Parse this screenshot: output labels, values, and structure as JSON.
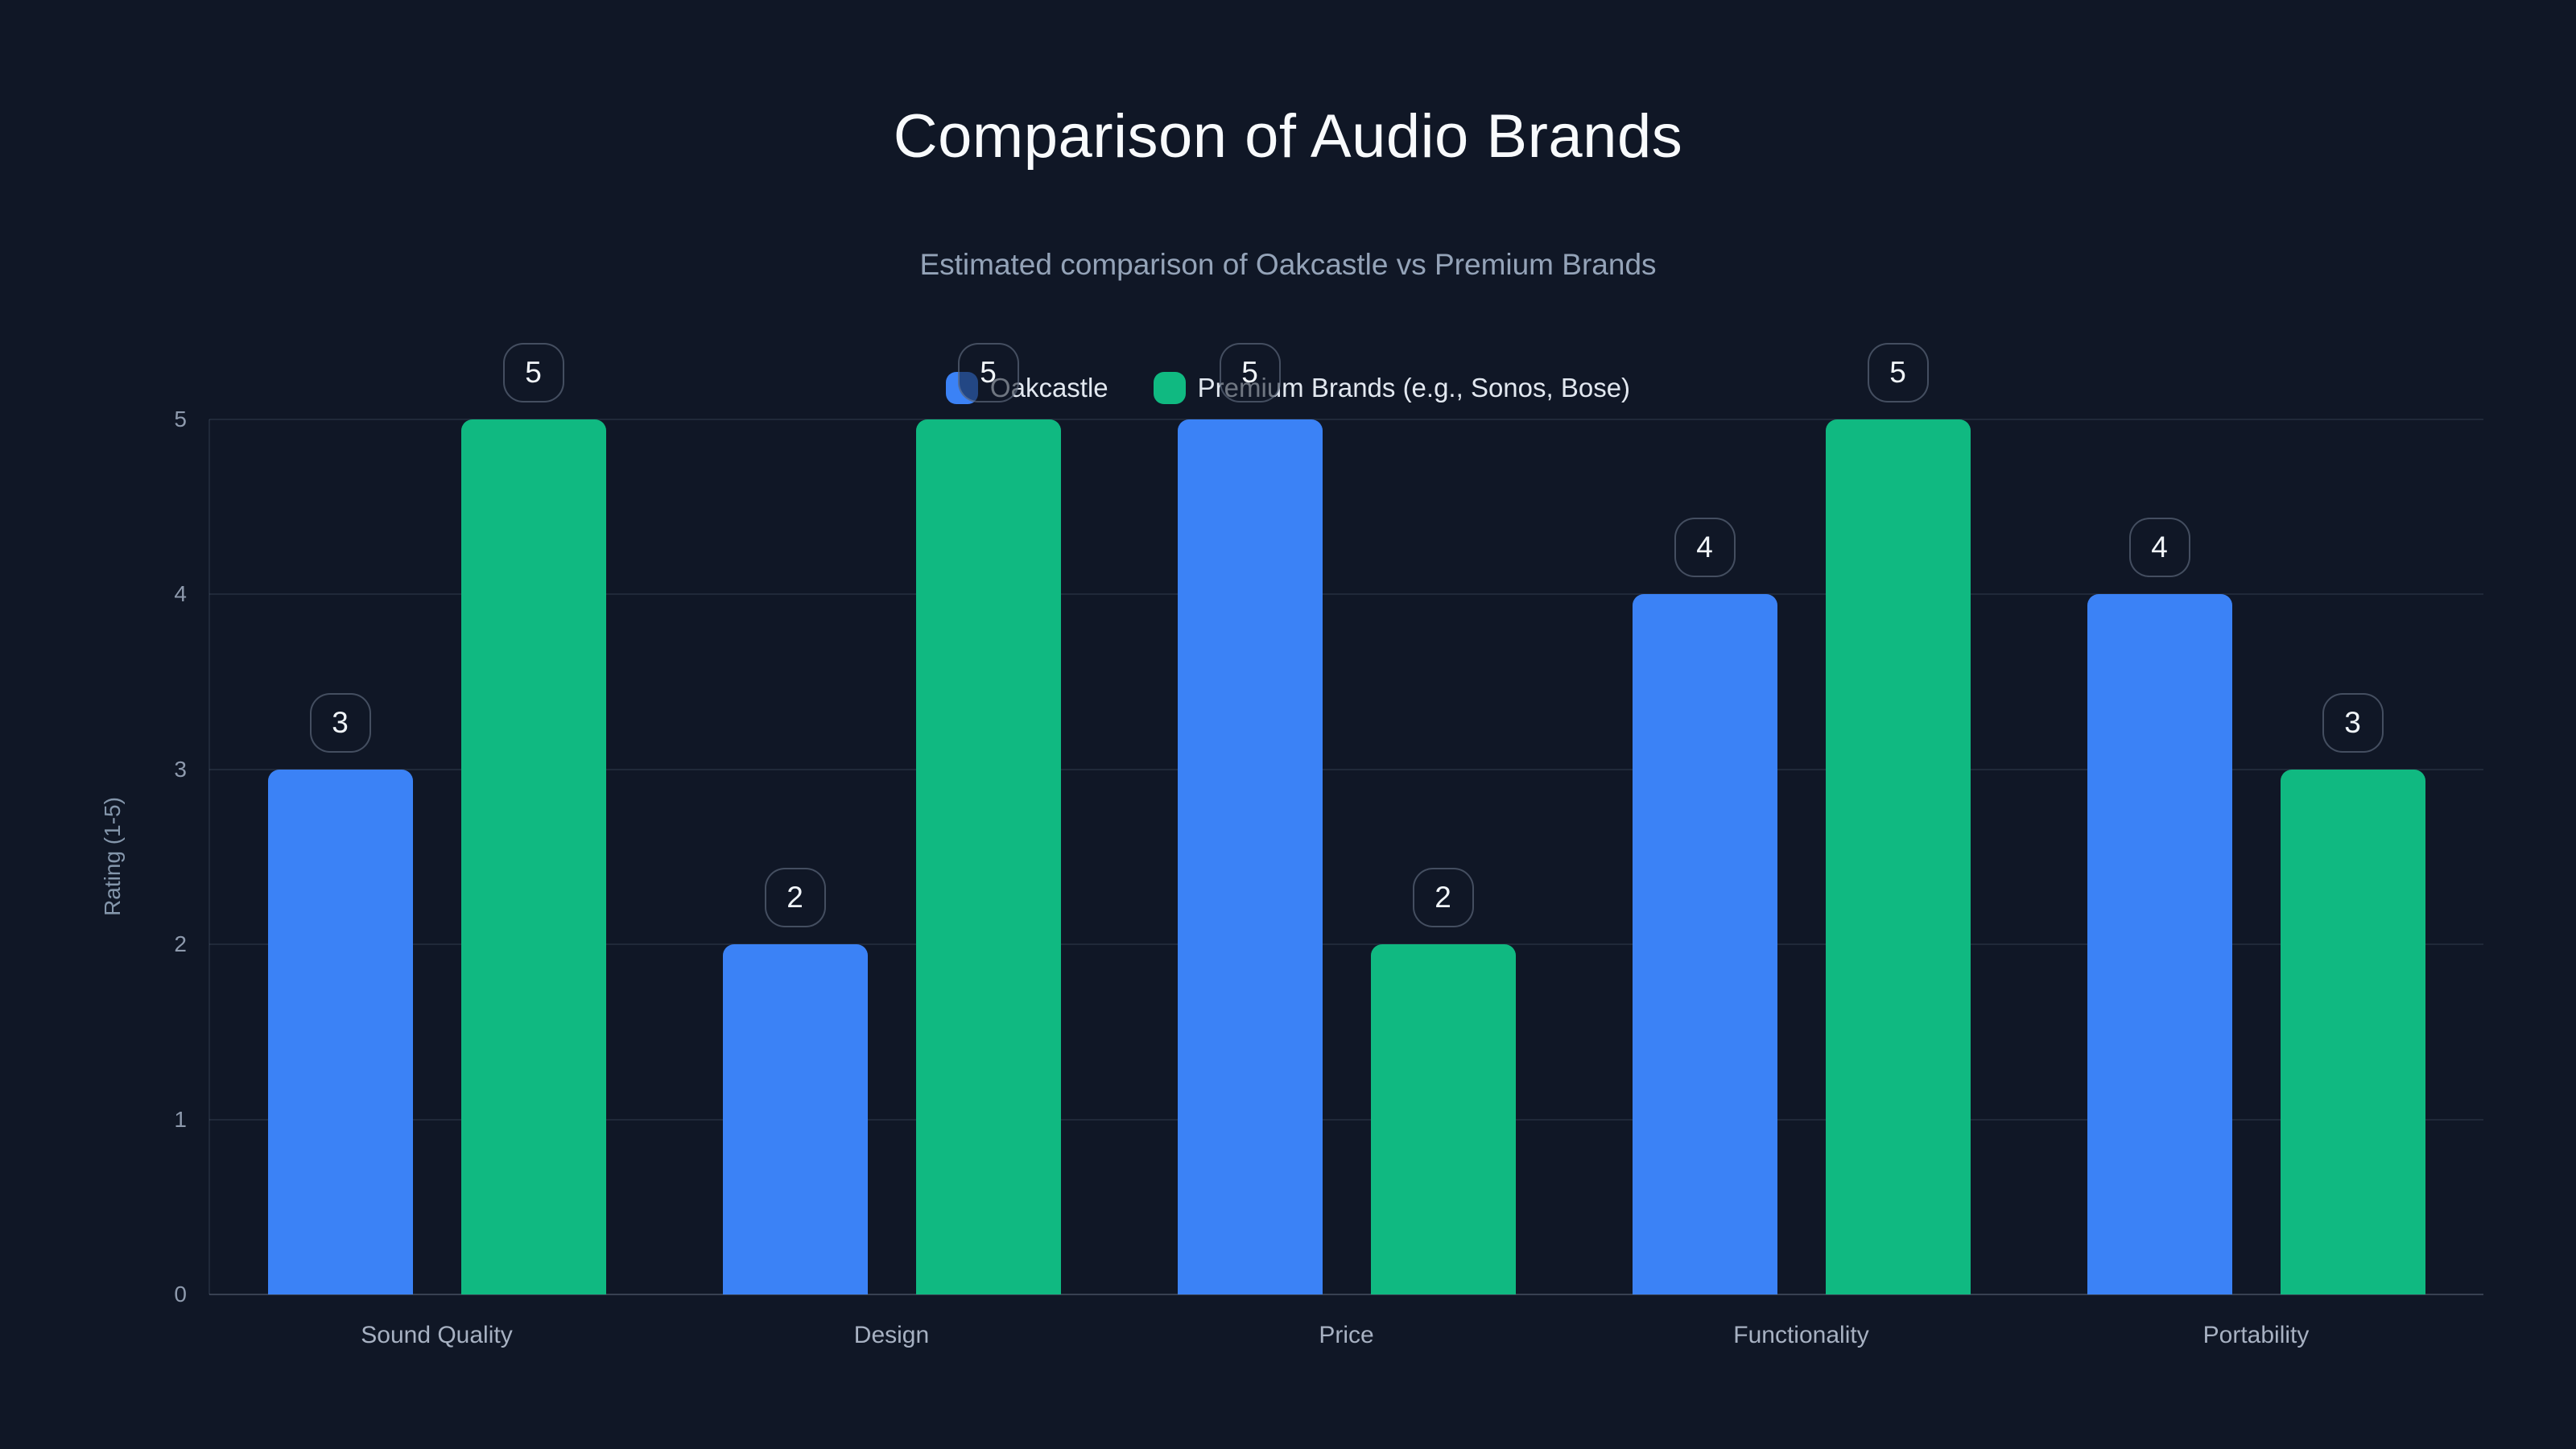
{
  "title": "Comparison of Audio Brands",
  "subtitle": "Estimated comparison of Oakcastle vs Premium Brands",
  "legend": [
    {
      "label": "Oakcastle",
      "color": "#3b82f6"
    },
    {
      "label": "Premium Brands (e.g., Sonos, Bose)",
      "color": "#10b981"
    }
  ],
  "y_axis": {
    "label": "Rating (1-5)",
    "ticks": [
      "0",
      "1",
      "2",
      "3",
      "4",
      "5"
    ]
  },
  "x_axis": {
    "categories": [
      "Sound Quality",
      "Design",
      "Price",
      "Functionality",
      "Portability"
    ]
  },
  "value_labels": {
    "Oakcastle": [
      "3",
      "2",
      "5",
      "4",
      "4"
    ],
    "Premium Brands (e.g., Sonos, Bose)": [
      "5",
      "5",
      "2",
      "5",
      "3"
    ]
  },
  "colors": {
    "background": "#101726",
    "oakcastle_bar": "#3b82f6",
    "premium_bar": "#10b981",
    "title_text": "#f8fafc",
    "subtitle_text": "#94a3b8",
    "gridline": "rgba(148,163,184,0.13)"
  },
  "chart_data": {
    "type": "bar",
    "title": "Comparison of Audio Brands",
    "subtitle": "Estimated comparison of Oakcastle vs Premium Brands",
    "categories": [
      "Sound Quality",
      "Design",
      "Price",
      "Functionality",
      "Portability"
    ],
    "series": [
      {
        "name": "Oakcastle",
        "color": "#3b82f6",
        "values": [
          3,
          2,
          5,
          4,
          4
        ]
      },
      {
        "name": "Premium Brands (e.g., Sonos, Bose)",
        "color": "#10b981",
        "values": [
          5,
          5,
          2,
          5,
          3
        ]
      }
    ],
    "xlabel": "",
    "ylabel": "Rating (1-5)",
    "ylim": [
      0,
      5
    ],
    "yticks": [
      0,
      1,
      2,
      3,
      4,
      5
    ],
    "grid": true,
    "grid_axis": "y",
    "legend_position": "top-center",
    "value_labels_style": "rounded outline badge above each bar",
    "background": "#101726"
  }
}
